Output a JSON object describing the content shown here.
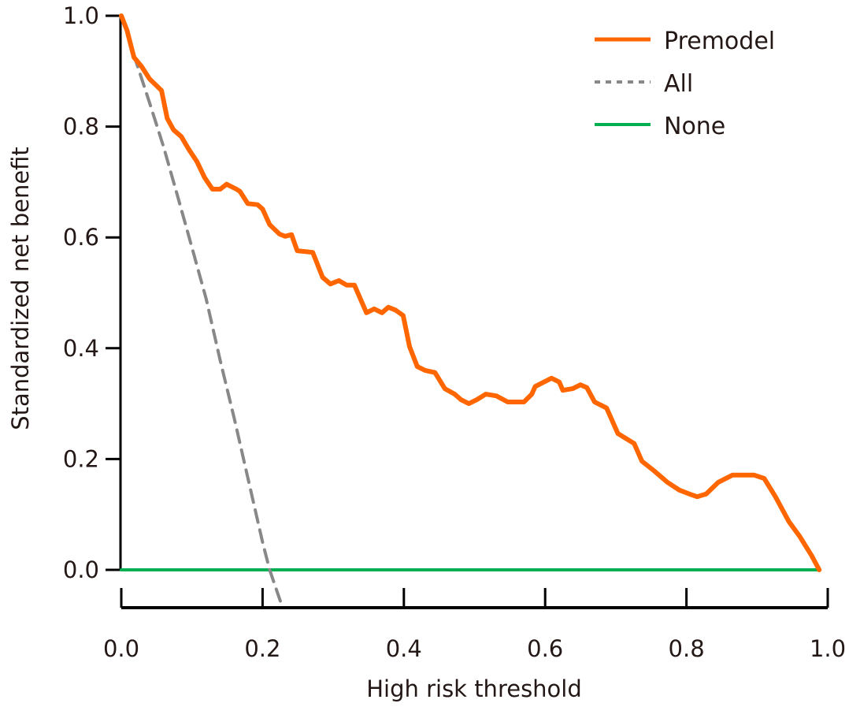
{
  "chart_data": {
    "type": "line",
    "title": "",
    "xlabel": "High risk threshold",
    "ylabel": "Standardized net benefit",
    "xlim": [
      0,
      1.0
    ],
    "ylim": [
      -0.067,
      1.0
    ],
    "xticks": [
      "0.0",
      "0.2",
      "0.4",
      "0.6",
      "0.8",
      "1.0"
    ],
    "yticks": [
      "0.0",
      "0.2",
      "0.4",
      "0.6",
      "0.8",
      "1.0"
    ],
    "grid": false,
    "legend_position": "top-right",
    "series": [
      {
        "name": "Premodel",
        "color": "#ff6600",
        "style": "solid",
        "x": [
          0,
          0.008,
          0.018,
          0.029,
          0.04,
          0.057,
          0.065,
          0.074,
          0.085,
          0.096,
          0.107,
          0.118,
          0.129,
          0.14,
          0.149,
          0.163,
          0.168,
          0.179,
          0.193,
          0.2,
          0.21,
          0.224,
          0.232,
          0.241,
          0.249,
          0.271,
          0.285,
          0.296,
          0.308,
          0.319,
          0.33,
          0.347,
          0.358,
          0.369,
          0.378,
          0.388,
          0.399,
          0.408,
          0.419,
          0.43,
          0.444,
          0.458,
          0.472,
          0.481,
          0.492,
          0.503,
          0.516,
          0.531,
          0.547,
          0.57,
          0.581,
          0.586,
          0.609,
          0.62,
          0.625,
          0.639,
          0.65,
          0.659,
          0.67,
          0.687,
          0.703,
          0.726,
          0.737,
          0.754,
          0.773,
          0.79,
          0.804,
          0.815,
          0.828,
          0.845,
          0.865,
          0.882,
          0.896,
          0.91,
          0.926,
          0.945,
          0.96,
          0.977,
          0.988
        ],
        "y": [
          1.0,
          0.974,
          0.925,
          0.908,
          0.886,
          0.865,
          0.815,
          0.794,
          0.782,
          0.758,
          0.737,
          0.708,
          0.687,
          0.687,
          0.696,
          0.687,
          0.683,
          0.661,
          0.659,
          0.651,
          0.623,
          0.606,
          0.602,
          0.605,
          0.576,
          0.573,
          0.528,
          0.516,
          0.522,
          0.514,
          0.514,
          0.464,
          0.471,
          0.464,
          0.474,
          0.469,
          0.459,
          0.403,
          0.367,
          0.36,
          0.356,
          0.327,
          0.317,
          0.307,
          0.3,
          0.307,
          0.317,
          0.314,
          0.303,
          0.303,
          0.317,
          0.331,
          0.346,
          0.339,
          0.324,
          0.327,
          0.334,
          0.329,
          0.303,
          0.292,
          0.246,
          0.228,
          0.196,
          0.179,
          0.158,
          0.144,
          0.137,
          0.132,
          0.137,
          0.158,
          0.171,
          0.171,
          0.171,
          0.165,
          0.132,
          0.087,
          0.061,
          0.026,
          0.0
        ]
      },
      {
        "name": "All",
        "color": "#888888",
        "style": "dashed",
        "prevalence": 0.21,
        "x": [
          0,
          0.02,
          0.04,
          0.06,
          0.08,
          0.1,
          0.12,
          0.14,
          0.16,
          0.18,
          0.2,
          0.21,
          0.228
        ],
        "y": [
          1.0,
          0.921,
          0.843,
          0.763,
          0.673,
          0.582,
          0.49,
          0.378,
          0.273,
          0.161,
          0.05,
          0.0,
          -0.067
        ]
      },
      {
        "name": "None",
        "color": "#00b050",
        "style": "solid",
        "x": [
          0,
          0.988
        ],
        "y": [
          0,
          0
        ]
      }
    ]
  }
}
